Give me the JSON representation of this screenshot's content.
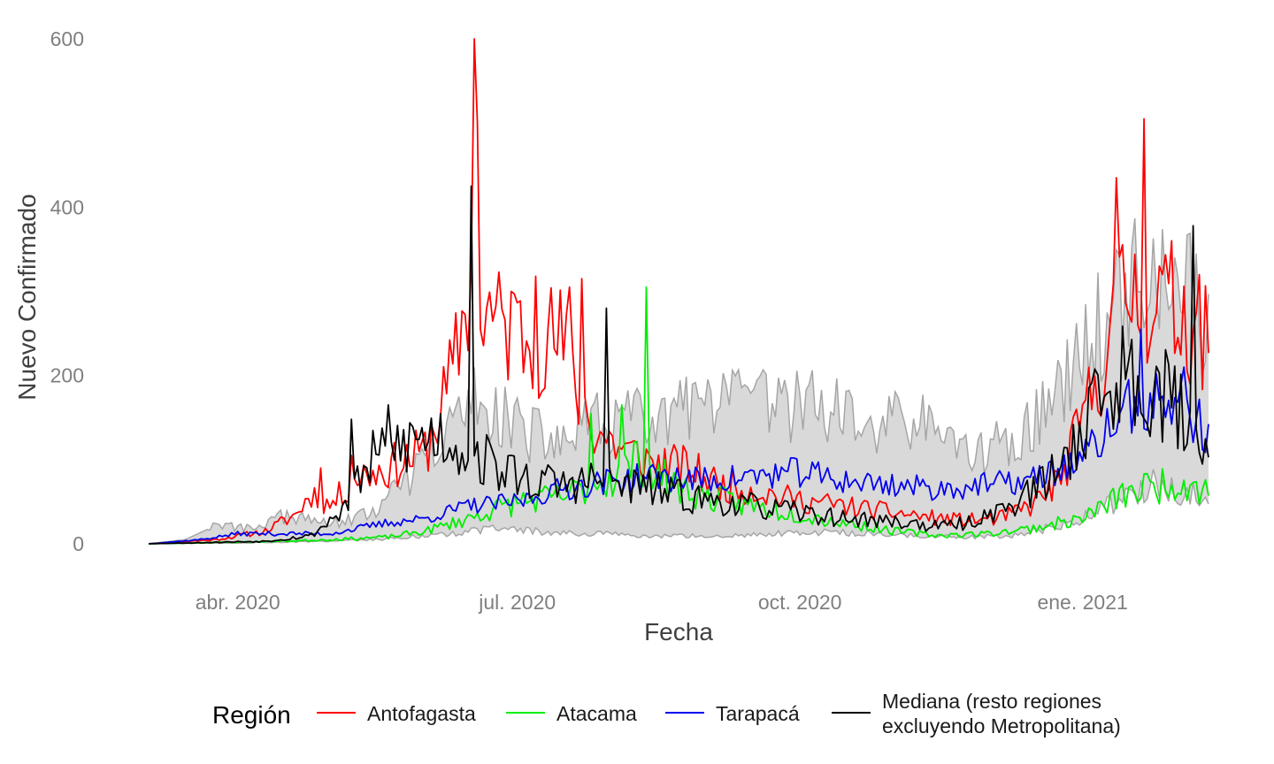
{
  "chart_data": {
    "type": "line",
    "title": "",
    "xlabel": "Fecha",
    "ylabel": "Nuevo Confirmado",
    "x_range": [
      "2020-03-03",
      "2021-02-11"
    ],
    "ylim": [
      -40,
      620
    ],
    "x_ticks": [
      {
        "date": "2020-04-01",
        "label": "abr. 2020"
      },
      {
        "date": "2020-07-01",
        "label": "jul. 2020"
      },
      {
        "date": "2020-10-01",
        "label": "oct. 2020"
      },
      {
        "date": "2021-01-01",
        "label": "ene. 2021"
      }
    ],
    "y_ticks": [
      0,
      200,
      400,
      600
    ],
    "grid": false,
    "legend": {
      "title": "Región",
      "position": "bottom",
      "entries": [
        {
          "key": "antofagasta",
          "label": "Antofagasta",
          "color": "#ff0000"
        },
        {
          "key": "atacama",
          "label": "Atacama",
          "color": "#00ee00"
        },
        {
          "key": "tarapaca",
          "label": "Tarapacá",
          "color": "#0000ee"
        },
        {
          "key": "mediana",
          "label_lines": [
            "Mediana (resto regiones",
            "excluyendo Metropolitana)"
          ],
          "color": "#000000"
        }
      ]
    },
    "band": {
      "fill": "#d9d9d9",
      "stroke": "#a6a6a6",
      "upper_anchors": [
        [
          "2020-03-03",
          0
        ],
        [
          "2020-03-15",
          5
        ],
        [
          "2020-03-25",
          22
        ],
        [
          "2020-04-05",
          18
        ],
        [
          "2020-04-15",
          32
        ],
        [
          "2020-04-25",
          28
        ],
        [
          "2020-05-05",
          25
        ],
        [
          "2020-05-15",
          38
        ],
        [
          "2020-05-25",
          70
        ],
        [
          "2020-06-05",
          110
        ],
        [
          "2020-06-15",
          170
        ],
        [
          "2020-06-25",
          160
        ],
        [
          "2020-07-05",
          130
        ],
        [
          "2020-07-15",
          120
        ],
        [
          "2020-07-25",
          140
        ],
        [
          "2020-08-05",
          150
        ],
        [
          "2020-08-15",
          140
        ],
        [
          "2020-08-25",
          160
        ],
        [
          "2020-09-05",
          160
        ],
        [
          "2020-09-15",
          170
        ],
        [
          "2020-09-25",
          160
        ],
        [
          "2020-10-05",
          170
        ],
        [
          "2020-10-15",
          150
        ],
        [
          "2020-10-25",
          140
        ],
        [
          "2020-11-05",
          150
        ],
        [
          "2020-11-15",
          130
        ],
        [
          "2020-11-25",
          110
        ],
        [
          "2020-12-05",
          115
        ],
        [
          "2020-12-15",
          140
        ],
        [
          "2020-12-25",
          180
        ],
        [
          "2021-01-05",
          250
        ],
        [
          "2021-01-15",
          320
        ],
        [
          "2021-01-25",
          310
        ],
        [
          "2021-02-05",
          300
        ],
        [
          "2021-02-11",
          250
        ]
      ],
      "lower_anchors": [
        [
          "2020-03-03",
          0
        ],
        [
          "2020-04-01",
          1
        ],
        [
          "2020-05-01",
          3
        ],
        [
          "2020-05-20",
          6
        ],
        [
          "2020-06-10",
          12
        ],
        [
          "2020-06-25",
          18
        ],
        [
          "2020-07-10",
          14
        ],
        [
          "2020-07-25",
          12
        ],
        [
          "2020-08-10",
          10
        ],
        [
          "2020-08-25",
          9
        ],
        [
          "2020-09-10",
          10
        ],
        [
          "2020-09-25",
          12
        ],
        [
          "2020-10-10",
          14
        ],
        [
          "2020-10-25",
          12
        ],
        [
          "2020-11-10",
          9
        ],
        [
          "2020-11-25",
          8
        ],
        [
          "2020-12-10",
          10
        ],
        [
          "2020-12-25",
          22
        ],
        [
          "2021-01-10",
          45
        ],
        [
          "2021-01-25",
          70
        ],
        [
          "2021-02-05",
          60
        ],
        [
          "2021-02-11",
          50
        ]
      ]
    },
    "series": [
      {
        "key": "antofagasta",
        "name": "Antofagasta",
        "color": "#ff0000",
        "seed": 11,
        "noise": 0.3,
        "anchors": [
          [
            "2020-03-03",
            0
          ],
          [
            "2020-03-25",
            5
          ],
          [
            "2020-04-10",
            15
          ],
          [
            "2020-04-20",
            35
          ],
          [
            "2020-04-25",
            60
          ],
          [
            "2020-05-01",
            45
          ],
          [
            "2020-05-10",
            80
          ],
          [
            "2020-05-20",
            90
          ],
          [
            "2020-06-01",
            110
          ],
          [
            "2020-06-10",
            200
          ],
          [
            "2020-06-15",
            300
          ],
          [
            "2020-06-25",
            260
          ],
          [
            "2020-07-05",
            250
          ],
          [
            "2020-07-15",
            240
          ],
          [
            "2020-07-25",
            140
          ],
          [
            "2020-08-05",
            110
          ],
          [
            "2020-08-15",
            95
          ],
          [
            "2020-08-25",
            90
          ],
          [
            "2020-09-05",
            70
          ],
          [
            "2020-09-15",
            65
          ],
          [
            "2020-09-25",
            55
          ],
          [
            "2020-10-05",
            50
          ],
          [
            "2020-10-15",
            45
          ],
          [
            "2020-10-25",
            40
          ],
          [
            "2020-11-05",
            35
          ],
          [
            "2020-11-15",
            30
          ],
          [
            "2020-11-25",
            28
          ],
          [
            "2020-12-05",
            30
          ],
          [
            "2020-12-15",
            45
          ],
          [
            "2020-12-25",
            75
          ],
          [
            "2021-01-05",
            190
          ],
          [
            "2021-01-15",
            300
          ],
          [
            "2021-01-25",
            290
          ],
          [
            "2021-02-05",
            270
          ],
          [
            "2021-02-11",
            230
          ]
        ],
        "spikes": [
          [
            "2020-04-28",
            90
          ],
          [
            "2020-05-08",
            105
          ],
          [
            "2020-06-17",
            600
          ],
          [
            "2020-06-18",
            500
          ],
          [
            "2020-06-29",
            300
          ],
          [
            "2020-07-07",
            318
          ],
          [
            "2020-07-18",
            305
          ],
          [
            "2020-07-22",
            315
          ],
          [
            "2021-01-12",
            435
          ],
          [
            "2021-01-21",
            505
          ],
          [
            "2021-02-08",
            320
          ]
        ]
      },
      {
        "key": "atacama",
        "name": "Atacama",
        "color": "#00ee00",
        "seed": 23,
        "noise": 0.32,
        "anchors": [
          [
            "2020-03-03",
            0
          ],
          [
            "2020-04-15",
            3
          ],
          [
            "2020-05-01",
            5
          ],
          [
            "2020-05-20",
            8
          ],
          [
            "2020-06-01",
            15
          ],
          [
            "2020-06-15",
            30
          ],
          [
            "2020-07-01",
            50
          ],
          [
            "2020-07-15",
            55
          ],
          [
            "2020-08-01",
            80
          ],
          [
            "2020-08-10",
            100
          ],
          [
            "2020-08-20",
            70
          ],
          [
            "2020-09-01",
            55
          ],
          [
            "2020-09-15",
            45
          ],
          [
            "2020-10-01",
            35
          ],
          [
            "2020-10-15",
            25
          ],
          [
            "2020-11-01",
            15
          ],
          [
            "2020-11-15",
            10
          ],
          [
            "2020-12-01",
            12
          ],
          [
            "2020-12-15",
            18
          ],
          [
            "2021-01-01",
            30
          ],
          [
            "2021-01-15",
            60
          ],
          [
            "2021-02-01",
            75
          ],
          [
            "2021-02-11",
            65
          ]
        ],
        "spikes": [
          [
            "2020-07-25",
            155
          ],
          [
            "2020-08-04",
            165
          ],
          [
            "2020-08-12",
            305
          ]
        ]
      },
      {
        "key": "tarapaca",
        "name": "Tarapacá",
        "color": "#0000ee",
        "seed": 37,
        "noise": 0.22,
        "anchors": [
          [
            "2020-03-03",
            0
          ],
          [
            "2020-03-20",
            5
          ],
          [
            "2020-04-01",
            12
          ],
          [
            "2020-04-20",
            12
          ],
          [
            "2020-05-01",
            12
          ],
          [
            "2020-05-20",
            25
          ],
          [
            "2020-06-01",
            30
          ],
          [
            "2020-06-15",
            45
          ],
          [
            "2020-07-01",
            50
          ],
          [
            "2020-07-15",
            65
          ],
          [
            "2020-08-01",
            75
          ],
          [
            "2020-08-15",
            80
          ],
          [
            "2020-09-01",
            75
          ],
          [
            "2020-09-15",
            80
          ],
          [
            "2020-10-01",
            85
          ],
          [
            "2020-10-15",
            75
          ],
          [
            "2020-11-01",
            70
          ],
          [
            "2020-11-15",
            65
          ],
          [
            "2020-12-01",
            70
          ],
          [
            "2020-12-15",
            75
          ],
          [
            "2021-01-01",
            100
          ],
          [
            "2021-01-15",
            160
          ],
          [
            "2021-02-01",
            170
          ],
          [
            "2021-02-11",
            130
          ]
        ],
        "spikes": [
          [
            "2021-01-20",
            255
          ],
          [
            "2021-02-03",
            210
          ]
        ]
      },
      {
        "key": "mediana",
        "name": "Mediana (resto regiones excluyendo Metropolitana)",
        "color": "#000000",
        "seed": 53,
        "noise": 0.35,
        "anchors": [
          [
            "2020-03-03",
            0
          ],
          [
            "2020-04-10",
            3
          ],
          [
            "2020-04-25",
            10
          ],
          [
            "2020-05-05",
            40
          ],
          [
            "2020-05-15",
            100
          ],
          [
            "2020-05-25",
            120
          ],
          [
            "2020-06-05",
            130
          ],
          [
            "2020-06-15",
            110
          ],
          [
            "2020-06-25",
            90
          ],
          [
            "2020-07-05",
            75
          ],
          [
            "2020-07-15",
            70
          ],
          [
            "2020-07-25",
            75
          ],
          [
            "2020-08-05",
            70
          ],
          [
            "2020-08-15",
            65
          ],
          [
            "2020-08-25",
            55
          ],
          [
            "2020-09-05",
            50
          ],
          [
            "2020-09-15",
            45
          ],
          [
            "2020-09-25",
            40
          ],
          [
            "2020-10-05",
            35
          ],
          [
            "2020-10-15",
            30
          ],
          [
            "2020-10-25",
            28
          ],
          [
            "2020-11-05",
            25
          ],
          [
            "2020-11-15",
            20
          ],
          [
            "2020-11-25",
            25
          ],
          [
            "2020-12-05",
            40
          ],
          [
            "2020-12-15",
            60
          ],
          [
            "2020-12-25",
            90
          ],
          [
            "2021-01-05",
            170
          ],
          [
            "2021-01-15",
            200
          ],
          [
            "2021-01-25",
            190
          ],
          [
            "2021-02-05",
            140
          ],
          [
            "2021-02-11",
            120
          ]
        ],
        "spikes": [
          [
            "2020-05-08",
            148
          ],
          [
            "2020-05-20",
            165
          ],
          [
            "2020-06-16",
            425
          ],
          [
            "2020-07-30",
            280
          ],
          [
            "2021-02-06",
            378
          ]
        ]
      }
    ]
  }
}
